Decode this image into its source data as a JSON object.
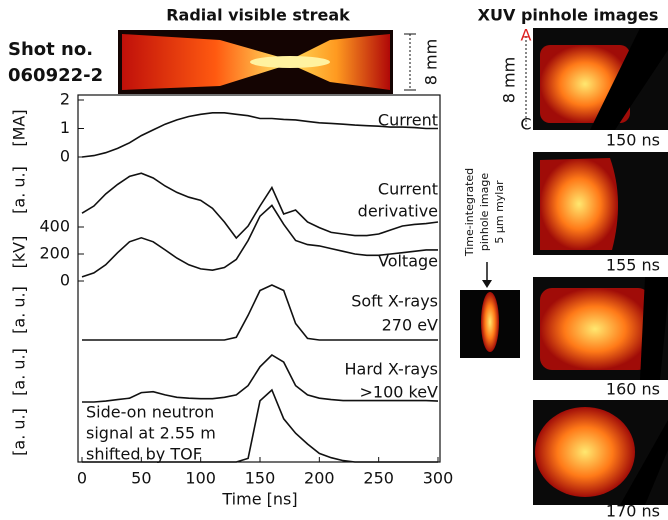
{
  "figure": {
    "streak_title": "Radial visible streak",
    "shot_label": "Shot no.",
    "shot_no": "060922-2",
    "streak_scale": "8 mm",
    "xuv_title": "XUV pinhole images",
    "xuv_scale": "8 mm",
    "xuv_top": "A",
    "xuv_bottom": "C",
    "integrated_note": [
      "Time-integrated",
      "pinhole image",
      "5 μm mylar"
    ],
    "frames": [
      "150 ns",
      "155 ns",
      "160 ns",
      "170 ns"
    ]
  },
  "chart_data": {
    "type": "line",
    "xlabel": "Time [ns]",
    "xlim": [
      0,
      300
    ],
    "xticks": [
      0,
      50,
      100,
      150,
      200,
      250,
      300
    ],
    "x": [
      0,
      10,
      20,
      30,
      40,
      50,
      60,
      70,
      80,
      90,
      100,
      110,
      120,
      130,
      140,
      150,
      160,
      170,
      180,
      190,
      200,
      210,
      220,
      230,
      240,
      250,
      260,
      270,
      280,
      290,
      300
    ],
    "series": [
      {
        "name": [
          "Current"
        ],
        "ylabel": "[MA]",
        "ylim": [
          0,
          2
        ],
        "yticks": [
          0,
          1,
          2
        ],
        "color": "#111111",
        "values": [
          0,
          0.05,
          0.15,
          0.3,
          0.5,
          0.75,
          0.95,
          1.15,
          1.3,
          1.42,
          1.5,
          1.55,
          1.55,
          1.5,
          1.45,
          1.35,
          1.35,
          1.32,
          1.3,
          1.25,
          1.2,
          1.18,
          1.15,
          1.12,
          1.1,
          1.08,
          1.05,
          1.05,
          1.03,
          1.0,
          1.0
        ]
      },
      {
        "name": [
          "Current",
          "derivative"
        ],
        "ylabel": "[a. u.]",
        "color": "#111111",
        "values": [
          0.46,
          0.55,
          0.7,
          0.82,
          0.92,
          0.96,
          0.9,
          0.8,
          0.72,
          0.66,
          0.62,
          0.52,
          0.35,
          0.15,
          0.3,
          0.55,
          0.78,
          0.45,
          0.5,
          0.35,
          0.28,
          0.22,
          0.2,
          0.18,
          0.18,
          0.2,
          0.25,
          0.3,
          0.32,
          0.33,
          0.35
        ]
      },
      {
        "name": [
          "Voltage"
        ],
        "ylabel": "[kV]",
        "ylim": [
          0,
          400
        ],
        "yticks": [
          0,
          200,
          400
        ],
        "color": "#111111",
        "values": [
          30,
          60,
          120,
          210,
          290,
          320,
          290,
          230,
          170,
          120,
          90,
          80,
          100,
          160,
          300,
          480,
          560,
          420,
          300,
          270,
          260,
          240,
          220,
          200,
          190,
          190,
          200,
          210,
          220,
          230,
          230
        ]
      },
      {
        "name": [
          "Soft X-rays",
          "270 eV"
        ],
        "ylabel": "[a. u.]",
        "color": "#111111",
        "values": [
          0,
          0,
          0,
          0,
          0,
          0,
          0,
          0,
          0,
          0,
          0,
          0,
          0,
          0.05,
          0.45,
          0.9,
          1.0,
          0.9,
          0.3,
          0.03,
          0,
          0,
          0,
          0,
          0,
          0,
          0,
          0,
          0,
          0,
          0
        ]
      },
      {
        "name": [
          "Hard X-rays",
          ">100 keV"
        ],
        "ylabel": "[a. u.]",
        "color": "#111111",
        "values": [
          0,
          0,
          0.02,
          0.05,
          0.08,
          0.2,
          0.22,
          0.15,
          0.1,
          0.08,
          0.07,
          0.07,
          0.1,
          0.15,
          0.35,
          0.75,
          1.0,
          0.85,
          0.35,
          0.15,
          0.08,
          0.05,
          0.03,
          0.03,
          0.03,
          0.03,
          0.03,
          0.03,
          0.03,
          0.03,
          0.02
        ]
      },
      {
        "name": [
          "Side-on neutron",
          "signal at 2.55 m",
          "shifted by TOF"
        ],
        "ylabel": "[a. u.]",
        "color": "#111111",
        "values": [
          0,
          0,
          0,
          0,
          0,
          0,
          0,
          0,
          0,
          0,
          0,
          0,
          0,
          0,
          0.05,
          0.85,
          1.0,
          0.6,
          0.4,
          0.25,
          0.12,
          0.06,
          0.02,
          0,
          0,
          0,
          0,
          0,
          0,
          0,
          0
        ]
      }
    ]
  }
}
